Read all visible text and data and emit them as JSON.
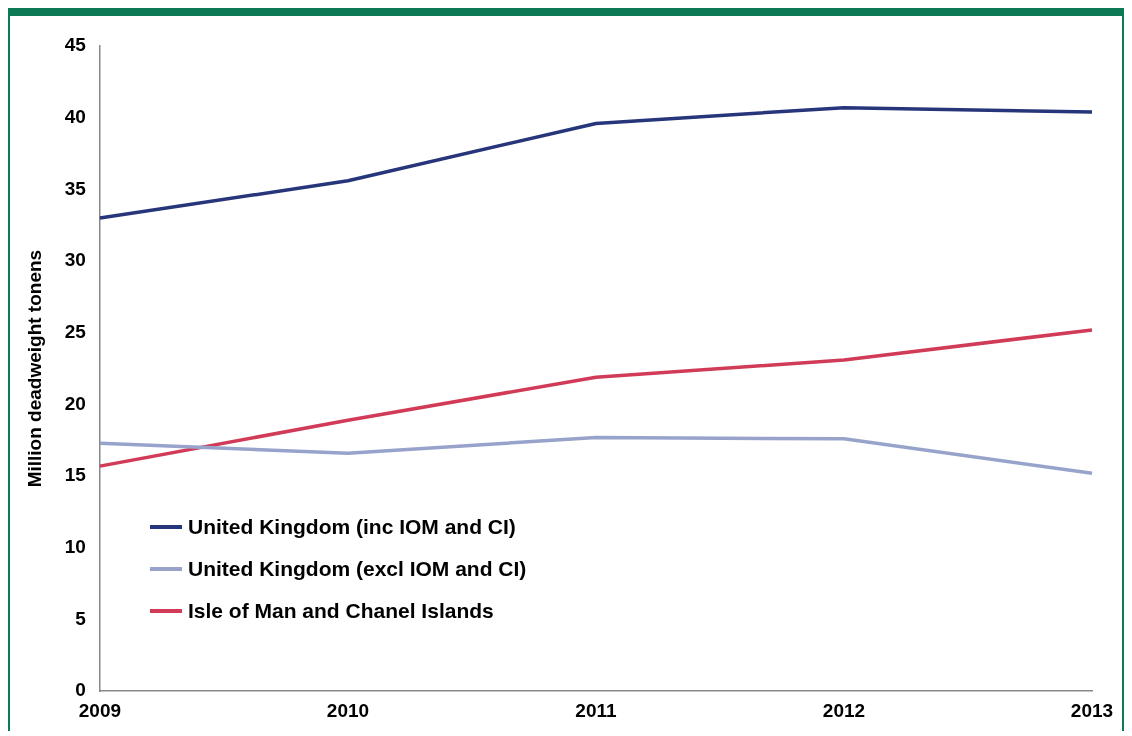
{
  "chart_data": {
    "type": "line",
    "ylabel": "Million deadweight tonens",
    "categories": [
      "2009",
      "2010",
      "2011",
      "2012",
      "2013"
    ],
    "series": [
      {
        "name": "United Kingdom (inc IOM and CI)",
        "color": "#27357a",
        "values": [
          33.0,
          35.6,
          39.6,
          40.7,
          40.4
        ]
      },
      {
        "name": "United Kingdom (excl IOM and CI)",
        "color": "#97a3cb",
        "values": [
          17.3,
          16.6,
          17.7,
          17.6,
          15.2
        ]
      },
      {
        "name": "Isle of Man and Chanel Islands",
        "color": "#d13b57",
        "values": [
          15.7,
          18.9,
          21.9,
          23.1,
          25.2
        ]
      }
    ],
    "ylim": [
      0,
      45
    ],
    "yticks": [
      0,
      5,
      10,
      15,
      20,
      25,
      30,
      35,
      40,
      45
    ],
    "grid": false,
    "legend": "bottom left",
    "marker": "none",
    "line_style": "solid"
  }
}
